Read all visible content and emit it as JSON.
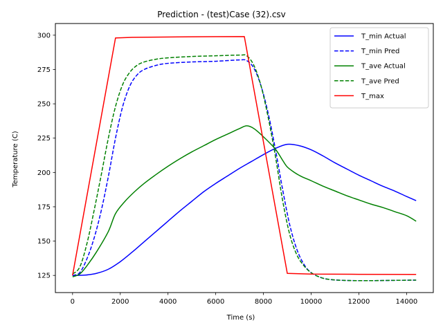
{
  "chart_data": {
    "type": "line",
    "title": "Prediction - (test)Case (32).csv",
    "xlabel": "Time (s)",
    "ylabel": "Temperature (C)",
    "xlim": [
      -720,
      15120
    ],
    "ylim": [
      112.5,
      308.5
    ],
    "xticks": [
      0,
      2000,
      4000,
      6000,
      8000,
      10000,
      12000,
      14000
    ],
    "yticks": [
      125,
      150,
      175,
      200,
      225,
      250,
      275,
      300
    ],
    "grid": false,
    "legend": "top-right",
    "series": [
      {
        "name": "T_min Actual",
        "color": "#0000ff",
        "dash": "solid",
        "x": [
          0,
          500,
          1000,
          1500,
          2000,
          2500,
          3000,
          3500,
          4000,
          4500,
          5000,
          5500,
          6000,
          6500,
          7000,
          7500,
          8000,
          8500,
          9000,
          9500,
          10000,
          10500,
          11000,
          11500,
          12000,
          12500,
          13000,
          13500,
          14000,
          14400
        ],
        "y": [
          125,
          125.2,
          126.5,
          129.5,
          135,
          142,
          149.5,
          157,
          164.5,
          172,
          179,
          186,
          192,
          197.5,
          203,
          208,
          213,
          217.5,
          220.5,
          219.5,
          216.5,
          212,
          207,
          202.5,
          198,
          194,
          190,
          186.5,
          182.5,
          179.5
        ]
      },
      {
        "name": "T_min Pred",
        "color": "#0000ff",
        "dash": "dashed",
        "x": [
          0,
          300,
          600,
          900,
          1200,
          1500,
          1800,
          2100,
          2400,
          2700,
          3000,
          3500,
          4000,
          5000,
          6000,
          7000,
          7300,
          7600,
          7900,
          8200,
          8500,
          8800,
          9100,
          9400,
          9700,
          10000,
          10400,
          10800,
          11500,
          12500,
          13500,
          14400
        ],
        "y": [
          125,
          127,
          137,
          152,
          172,
          197,
          225,
          248,
          263,
          271,
          275,
          278,
          279.5,
          280.5,
          281,
          282,
          281.5,
          276,
          263,
          243,
          217,
          188,
          162,
          144,
          133,
          127,
          123.5,
          122,
          121.3,
          121.2,
          121.4,
          121.6
        ]
      },
      {
        "name": "T_ave Actual",
        "color": "#008000",
        "dash": "solid",
        "x": [
          0,
          300,
          600,
          1000,
          1500,
          1800,
          2200,
          2600,
          3000,
          3500,
          4000,
          4500,
          5000,
          5500,
          6000,
          6500,
          7000,
          7300,
          7600,
          8000,
          8500,
          8800,
          9000,
          9300,
          9600,
          10000,
          10500,
          11000,
          11500,
          12000,
          12500,
          13000,
          13500,
          14000,
          14400
        ],
        "y": [
          124,
          126,
          132,
          142,
          157,
          170,
          179,
          186,
          192,
          198.5,
          204.5,
          210,
          215,
          219.5,
          224,
          228,
          232,
          234,
          232,
          226,
          217,
          209,
          204,
          200,
          197,
          194,
          190,
          186.5,
          183,
          180,
          177,
          174.5,
          171.5,
          168.5,
          164.5
        ]
      },
      {
        "name": "T_ave Pred",
        "color": "#008000",
        "dash": "dashed",
        "x": [
          0,
          300,
          600,
          900,
          1200,
          1500,
          1800,
          2100,
          2400,
          2700,
          3000,
          3500,
          4000,
          5000,
          6000,
          7000,
          7300,
          7600,
          7900,
          8200,
          8500,
          8800,
          9100,
          9400,
          9700,
          10000,
          10400,
          10800,
          11500,
          12500,
          13500,
          14400
        ],
        "y": [
          126,
          131,
          148,
          172,
          198,
          225,
          248,
          264,
          273,
          278,
          280.5,
          282.5,
          283.5,
          284.5,
          285,
          285.5,
          285,
          278,
          263,
          240,
          212,
          180,
          155,
          140,
          132,
          127,
          123.5,
          122,
          121.3,
          121.2,
          121.4,
          121.6
        ]
      },
      {
        "name": "T_max",
        "color": "#ff0000",
        "dash": "solid",
        "x": [
          0,
          1800,
          2500,
          4000,
          6000,
          7200,
          9000,
          10000,
          12000,
          14400
        ],
        "y": [
          125,
          298,
          298.4,
          298.7,
          298.9,
          299,
          126.5,
          126,
          125.8,
          125.7
        ]
      }
    ]
  }
}
